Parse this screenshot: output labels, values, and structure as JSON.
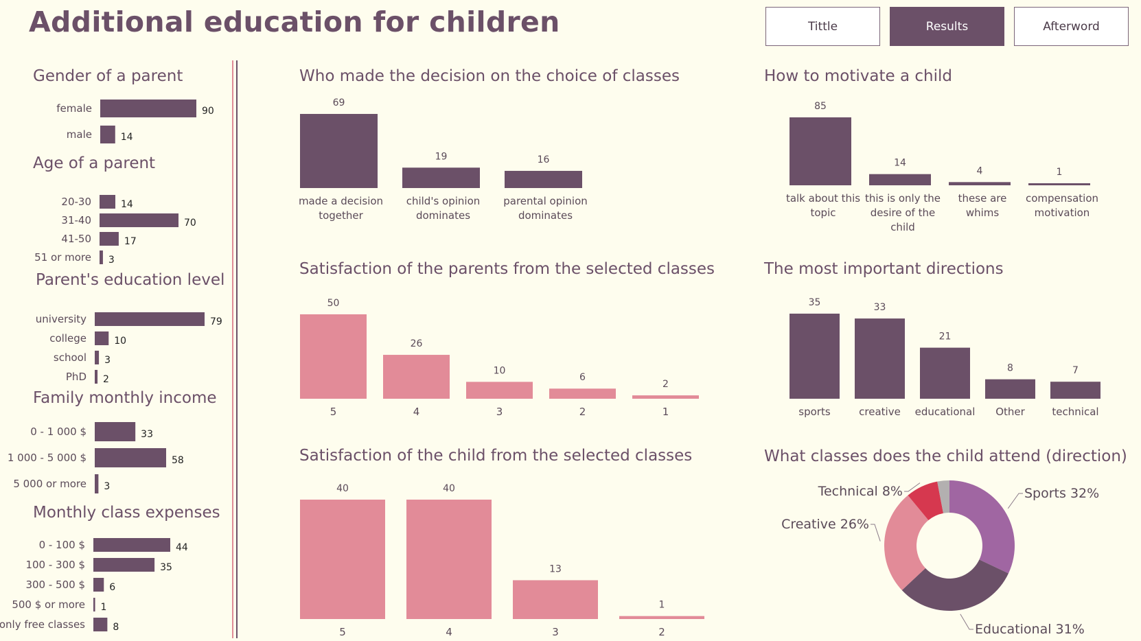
{
  "page": {
    "title": "Additional education for children",
    "nav": {
      "tittle": "Tittle",
      "results": "Results",
      "afterword": "Afterword"
    }
  },
  "colors": {
    "plum": "#6b5068",
    "pink": "#e28b98",
    "text": "#5a4a58",
    "background": "#fefdee"
  },
  "chart_data": [
    {
      "id": "gender",
      "type": "bar",
      "orientation": "horizontal",
      "title": "Gender of a parent",
      "categories": [
        "female",
        "male"
      ],
      "values": [
        90,
        14
      ],
      "color": "#6b5068"
    },
    {
      "id": "age",
      "type": "bar",
      "orientation": "horizontal",
      "title": "Age of a parent",
      "categories": [
        "20-30",
        "31-40",
        "41-50",
        "51 or more"
      ],
      "values": [
        14,
        70,
        17,
        3
      ],
      "color": "#6b5068"
    },
    {
      "id": "education",
      "type": "bar",
      "orientation": "horizontal",
      "title": "Parent's education level",
      "categories": [
        "university",
        "college",
        "school",
        "PhD"
      ],
      "values": [
        79,
        10,
        3,
        2
      ],
      "color": "#6b5068"
    },
    {
      "id": "income",
      "type": "bar",
      "orientation": "horizontal",
      "title": "Family monthly income",
      "categories": [
        "0 - 1 000 $",
        "1 000 - 5 000 $",
        "5 000 or more"
      ],
      "values": [
        33,
        58,
        3
      ],
      "color": "#6b5068"
    },
    {
      "id": "expenses",
      "type": "bar",
      "orientation": "horizontal",
      "title": "Monthly class expenses",
      "categories": [
        "0 - 100 $",
        "100 - 300 $",
        "300 - 500 $",
        "500 $ or more",
        "only free classes"
      ],
      "values": [
        44,
        35,
        6,
        1,
        8
      ],
      "color": "#6b5068"
    },
    {
      "id": "decision",
      "type": "bar",
      "orientation": "vertical",
      "title": "Who made the decision on the choice of classes",
      "categories": [
        "made a decision together",
        "child's opinion dominates",
        "parental opinion dominates"
      ],
      "category_lines": [
        [
          "made a decision",
          "together"
        ],
        [
          "child's opinion",
          "dominates"
        ],
        [
          "parental opinion",
          "dominates"
        ]
      ],
      "values": [
        69,
        19,
        16
      ],
      "color": "#6b5068"
    },
    {
      "id": "motivate",
      "type": "bar",
      "orientation": "vertical",
      "title": "How to motivate a child",
      "categories": [
        "talk about this topic",
        "this is only the desire of the child",
        "these are whims",
        "compensation motivation"
      ],
      "category_lines": [
        [
          "talk about this",
          "topic"
        ],
        [
          "this is only the",
          "desire of the",
          "child"
        ],
        [
          "these are",
          "whims"
        ],
        [
          "compensation",
          "motivation"
        ]
      ],
      "values": [
        85,
        14,
        4,
        1
      ],
      "color": "#6b5068"
    },
    {
      "id": "satisfaction_parents",
      "type": "bar",
      "orientation": "vertical",
      "title": "Satisfaction of the parents from the selected classes",
      "categories": [
        "5",
        "4",
        "3",
        "2",
        "1"
      ],
      "values": [
        50,
        26,
        10,
        6,
        2
      ],
      "color": "#e28b98"
    },
    {
      "id": "directions",
      "type": "bar",
      "orientation": "vertical",
      "title": "The most important directions",
      "categories": [
        "sports",
        "creative",
        "educational",
        "Other",
        "technical"
      ],
      "values": [
        35,
        33,
        21,
        8,
        7
      ],
      "color": "#6b5068"
    },
    {
      "id": "satisfaction_child",
      "type": "bar",
      "orientation": "vertical",
      "title": "Satisfaction of the child from the selected classes",
      "categories": [
        "5",
        "4",
        "3",
        "2"
      ],
      "values": [
        40,
        40,
        13,
        1
      ],
      "color": "#e28b98"
    },
    {
      "id": "attend",
      "type": "pie",
      "donut": true,
      "title": "What classes does the child attend (direction)",
      "slices": [
        {
          "label": "Sports 32%",
          "value": 32,
          "color": "#a066a2"
        },
        {
          "label": "Educational 31%",
          "value": 31,
          "color": "#6b5068"
        },
        {
          "label": "Creative 26%",
          "value": 26,
          "color": "#e28b98"
        },
        {
          "label": "Technical 8%",
          "value": 8,
          "color": "#d6384f"
        },
        {
          "label": "",
          "value": 3,
          "color": "#b3b0b0"
        }
      ]
    }
  ]
}
